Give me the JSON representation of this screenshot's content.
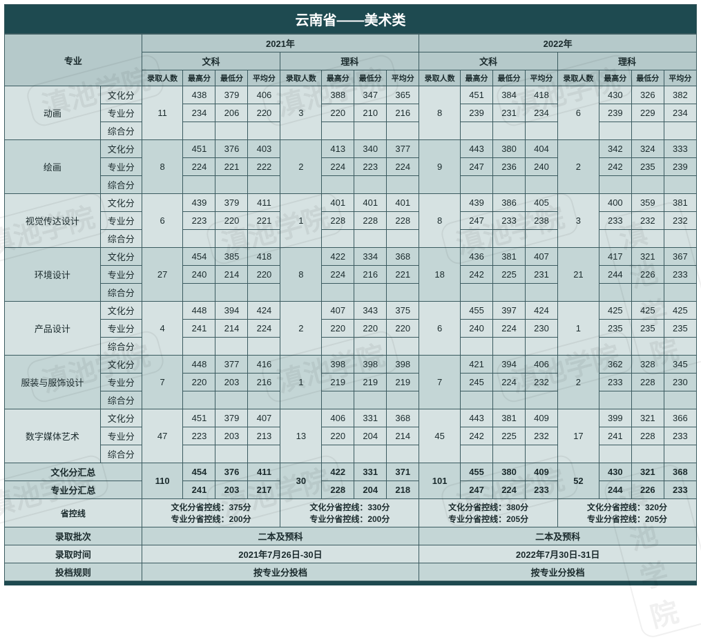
{
  "title": "云南省——美术类",
  "watermark_text": "滇池学院",
  "header": {
    "major": "专业",
    "years": [
      "2021年",
      "2022年"
    ],
    "tracks": [
      "文科",
      "理科"
    ],
    "cols": [
      "录取人数",
      "最高分",
      "最低分",
      "平均分"
    ]
  },
  "score_types": [
    "文化分",
    "专业分",
    "综合分"
  ],
  "majors": [
    {
      "name": "动画",
      "data": {
        "2021_wen": {
          "count": "11",
          "culture": [
            "438",
            "379",
            "406"
          ],
          "prof": [
            "234",
            "206",
            "220"
          ],
          "comp": [
            "",
            "",
            ""
          ]
        },
        "2021_li": {
          "count": "3",
          "culture": [
            "388",
            "347",
            "365"
          ],
          "prof": [
            "220",
            "210",
            "216"
          ],
          "comp": [
            "",
            "",
            ""
          ]
        },
        "2022_wen": {
          "count": "8",
          "culture": [
            "451",
            "384",
            "418"
          ],
          "prof": [
            "239",
            "231",
            "234"
          ],
          "comp": [
            "",
            "",
            ""
          ]
        },
        "2022_li": {
          "count": "6",
          "culture": [
            "430",
            "326",
            "382"
          ],
          "prof": [
            "239",
            "229",
            "234"
          ],
          "comp": [
            "",
            "",
            ""
          ]
        }
      }
    },
    {
      "name": "绘画",
      "data": {
        "2021_wen": {
          "count": "8",
          "culture": [
            "451",
            "376",
            "403"
          ],
          "prof": [
            "224",
            "221",
            "222"
          ],
          "comp": [
            "",
            "",
            ""
          ]
        },
        "2021_li": {
          "count": "2",
          "culture": [
            "413",
            "340",
            "377"
          ],
          "prof": [
            "224",
            "223",
            "224"
          ],
          "comp": [
            "",
            "",
            ""
          ]
        },
        "2022_wen": {
          "count": "9",
          "culture": [
            "443",
            "380",
            "404"
          ],
          "prof": [
            "247",
            "236",
            "240"
          ],
          "comp": [
            "",
            "",
            ""
          ]
        },
        "2022_li": {
          "count": "2",
          "culture": [
            "342",
            "324",
            "333"
          ],
          "prof": [
            "242",
            "235",
            "239"
          ],
          "comp": [
            "",
            "",
            ""
          ]
        }
      }
    },
    {
      "name": "视觉传达设计",
      "data": {
        "2021_wen": {
          "count": "6",
          "culture": [
            "439",
            "379",
            "411"
          ],
          "prof": [
            "223",
            "220",
            "221"
          ],
          "comp": [
            "",
            "",
            ""
          ]
        },
        "2021_li": {
          "count": "1",
          "culture": [
            "401",
            "401",
            "401"
          ],
          "prof": [
            "228",
            "228",
            "228"
          ],
          "comp": [
            "",
            "",
            ""
          ]
        },
        "2022_wen": {
          "count": "8",
          "culture": [
            "439",
            "386",
            "405"
          ],
          "prof": [
            "247",
            "233",
            "238"
          ],
          "comp": [
            "",
            "",
            ""
          ]
        },
        "2022_li": {
          "count": "3",
          "culture": [
            "400",
            "359",
            "381"
          ],
          "prof": [
            "233",
            "232",
            "232"
          ],
          "comp": [
            "",
            "",
            ""
          ]
        }
      }
    },
    {
      "name": "环境设计",
      "data": {
        "2021_wen": {
          "count": "27",
          "culture": [
            "454",
            "385",
            "418"
          ],
          "prof": [
            "240",
            "214",
            "220"
          ],
          "comp": [
            "",
            "",
            ""
          ]
        },
        "2021_li": {
          "count": "8",
          "culture": [
            "422",
            "334",
            "368"
          ],
          "prof": [
            "224",
            "216",
            "221"
          ],
          "comp": [
            "",
            "",
            ""
          ]
        },
        "2022_wen": {
          "count": "18",
          "culture": [
            "436",
            "381",
            "407"
          ],
          "prof": [
            "242",
            "225",
            "231"
          ],
          "comp": [
            "",
            "",
            ""
          ]
        },
        "2022_li": {
          "count": "21",
          "culture": [
            "417",
            "321",
            "367"
          ],
          "prof": [
            "244",
            "226",
            "233"
          ],
          "comp": [
            "",
            "",
            ""
          ]
        }
      }
    },
    {
      "name": "产品设计",
      "data": {
        "2021_wen": {
          "count": "4",
          "culture": [
            "448",
            "394",
            "424"
          ],
          "prof": [
            "241",
            "214",
            "224"
          ],
          "comp": [
            "",
            "",
            ""
          ]
        },
        "2021_li": {
          "count": "2",
          "culture": [
            "407",
            "343",
            "375"
          ],
          "prof": [
            "220",
            "220",
            "220"
          ],
          "comp": [
            "",
            "",
            ""
          ]
        },
        "2022_wen": {
          "count": "6",
          "culture": [
            "455",
            "397",
            "424"
          ],
          "prof": [
            "240",
            "224",
            "230"
          ],
          "comp": [
            "",
            "",
            ""
          ]
        },
        "2022_li": {
          "count": "1",
          "culture": [
            "425",
            "425",
            "425"
          ],
          "prof": [
            "235",
            "235",
            "235"
          ],
          "comp": [
            "",
            "",
            ""
          ]
        }
      }
    },
    {
      "name": "服装与服饰设计",
      "data": {
        "2021_wen": {
          "count": "7",
          "culture": [
            "448",
            "377",
            "416"
          ],
          "prof": [
            "220",
            "203",
            "216"
          ],
          "comp": [
            "",
            "",
            ""
          ]
        },
        "2021_li": {
          "count": "1",
          "culture": [
            "398",
            "398",
            "398"
          ],
          "prof": [
            "219",
            "219",
            "219"
          ],
          "comp": [
            "",
            "",
            ""
          ]
        },
        "2022_wen": {
          "count": "7",
          "culture": [
            "421",
            "394",
            "406"
          ],
          "prof": [
            "245",
            "224",
            "232"
          ],
          "comp": [
            "",
            "",
            ""
          ]
        },
        "2022_li": {
          "count": "2",
          "culture": [
            "362",
            "328",
            "345"
          ],
          "prof": [
            "233",
            "228",
            "230"
          ],
          "comp": [
            "",
            "",
            ""
          ]
        }
      }
    },
    {
      "name": "数字媒体艺术",
      "data": {
        "2021_wen": {
          "count": "47",
          "culture": [
            "451",
            "379",
            "407"
          ],
          "prof": [
            "223",
            "203",
            "213"
          ],
          "comp": [
            "",
            "",
            ""
          ]
        },
        "2021_li": {
          "count": "13",
          "culture": [
            "406",
            "331",
            "368"
          ],
          "prof": [
            "220",
            "204",
            "214"
          ],
          "comp": [
            "",
            "",
            ""
          ]
        },
        "2022_wen": {
          "count": "45",
          "culture": [
            "443",
            "381",
            "409"
          ],
          "prof": [
            "242",
            "225",
            "232"
          ],
          "comp": [
            "",
            "",
            ""
          ]
        },
        "2022_li": {
          "count": "17",
          "culture": [
            "399",
            "321",
            "366"
          ],
          "prof": [
            "241",
            "228",
            "233"
          ],
          "comp": [
            "",
            "",
            ""
          ]
        }
      }
    }
  ],
  "summary": {
    "culture_label": "文化分汇总",
    "prof_label": "专业分汇总",
    "2021_wen": {
      "count": "110",
      "culture": [
        "454",
        "376",
        "411"
      ],
      "prof": [
        "241",
        "203",
        "217"
      ]
    },
    "2021_li": {
      "count": "30",
      "culture": [
        "422",
        "331",
        "371"
      ],
      "prof": [
        "228",
        "204",
        "218"
      ]
    },
    "2022_wen": {
      "count": "101",
      "culture": [
        "455",
        "380",
        "409"
      ],
      "prof": [
        "247",
        "224",
        "233"
      ]
    },
    "2022_li": {
      "count": "52",
      "culture": [
        "430",
        "321",
        "368"
      ],
      "prof": [
        "244",
        "226",
        "233"
      ]
    }
  },
  "control_line": {
    "label": "省控线",
    "2021_wen": {
      "culture": "文化分省控线：375分",
      "prof": "专业分省控线：200分"
    },
    "2021_li": {
      "culture": "文化分省控线：330分",
      "prof": "专业分省控线：200分"
    },
    "2022_wen": {
      "culture": "文化分省控线：380分",
      "prof": "专业分省控线：205分"
    },
    "2022_li": {
      "culture": "文化分省控线：320分",
      "prof": "专业分省控线：205分"
    }
  },
  "batch": {
    "label": "录取批次",
    "2021": "二本及预科",
    "2022": "二本及预科"
  },
  "time": {
    "label": "录取时间",
    "2021": "2021年7月26日-30日",
    "2022": "2022年7月30日-31日"
  },
  "rule": {
    "label": "投档规则",
    "2021": "按专业分投档",
    "2022": "按专业分投档"
  },
  "colors": {
    "header_bg": "#b5c9ca",
    "row_a": "#d6e2e2",
    "row_b": "#c4d6d6",
    "title_bg": "#1e4a50",
    "border": "#3a5a5f",
    "text": "#1a2a2c"
  }
}
